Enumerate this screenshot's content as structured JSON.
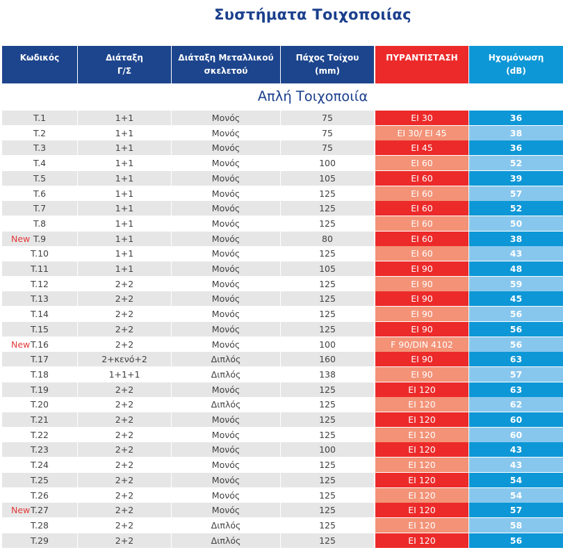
{
  "title": "Συστήματα Τοιχοποιίας",
  "headers": {
    "code": "Κωδικός",
    "arrangement": "Διάταξη Γ/Σ",
    "frame": "Διάταξη Μεταλλικού σκελετού",
    "thickness": "Πάχος Τοίχου (mm)",
    "fire": "ΠΥΡΑΝΤΙΣΤΑΣΗ",
    "acoustic": "Ηχομόνωση (dB)"
  },
  "section": "Απλή Τοιχοποιία",
  "colors": {
    "header_blue": "#1d458d",
    "fire_red": "#ec2a2a",
    "fire_light": "#f39277",
    "acoustic_blue": "#0d97d6",
    "acoustic_light": "#88c7ed",
    "new_label": "#e23a3a"
  },
  "rows": [
    {
      "new": "",
      "code": "T.1",
      "arr": "1+1",
      "frame": "Μονός",
      "thick": "75",
      "fire": "EI 30",
      "fire_dark": true,
      "acou": "36",
      "acou_dark": true
    },
    {
      "new": "",
      "code": "T.2",
      "arr": "1+1",
      "frame": "Μονός",
      "thick": "75",
      "fire": "EI 30/ EI 45",
      "fire_dark": false,
      "acou": "38",
      "acou_dark": false
    },
    {
      "new": "",
      "code": "T.3",
      "arr": "1+1",
      "frame": "Μονός",
      "thick": "75",
      "fire": "EI 45",
      "fire_dark": true,
      "acou": "36",
      "acou_dark": true
    },
    {
      "new": "",
      "code": "T.4",
      "arr": "1+1",
      "frame": "Μονός",
      "thick": "100",
      "fire": "EI 60",
      "fire_dark": false,
      "acou": "52",
      "acou_dark": false
    },
    {
      "new": "",
      "code": "T.5",
      "arr": "1+1",
      "frame": "Μονός",
      "thick": "105",
      "fire": "EI 60",
      "fire_dark": true,
      "acou": "39",
      "acou_dark": true
    },
    {
      "new": "",
      "code": "T.6",
      "arr": "1+1",
      "frame": "Μονός",
      "thick": "125",
      "fire": "EI 60",
      "fire_dark": false,
      "acou": "57",
      "acou_dark": false
    },
    {
      "new": "",
      "code": "T.7",
      "arr": "1+1",
      "frame": "Μονός",
      "thick": "125",
      "fire": "EI 60",
      "fire_dark": true,
      "acou": "52",
      "acou_dark": true
    },
    {
      "new": "",
      "code": "T.8",
      "arr": "1+1",
      "frame": "Μονός",
      "thick": "125",
      "fire": "EI 60",
      "fire_dark": false,
      "acou": "50",
      "acou_dark": false
    },
    {
      "new": "New",
      "code": "T.9",
      "arr": "1+1",
      "frame": "Μονός",
      "thick": "80",
      "fire": "EI 60",
      "fire_dark": true,
      "acou": "38",
      "acou_dark": true
    },
    {
      "new": "",
      "code": "T.10",
      "arr": "1+1",
      "frame": "Μονός",
      "thick": "125",
      "fire": "EI 60",
      "fire_dark": false,
      "acou": "43",
      "acou_dark": false
    },
    {
      "new": "",
      "code": "T.11",
      "arr": "1+1",
      "frame": "Μονός",
      "thick": "105",
      "fire": "EI 90",
      "fire_dark": true,
      "acou": "48",
      "acou_dark": true
    },
    {
      "new": "",
      "code": "T.12",
      "arr": "2+2",
      "frame": "Μονός",
      "thick": "125",
      "fire": "EI 90",
      "fire_dark": false,
      "acou": "59",
      "acou_dark": false
    },
    {
      "new": "",
      "code": "T.13",
      "arr": "2+2",
      "frame": "Μονός",
      "thick": "125",
      "fire": "EI 90",
      "fire_dark": true,
      "acou": "45",
      "acou_dark": true
    },
    {
      "new": "",
      "code": "T.14",
      "arr": "2+2",
      "frame": "Μονός",
      "thick": "125",
      "fire": "EI 90",
      "fire_dark": false,
      "acou": "56",
      "acou_dark": false
    },
    {
      "new": "",
      "code": "T.15",
      "arr": "2+2",
      "frame": "Μονός",
      "thick": "125",
      "fire": "EI 90",
      "fire_dark": true,
      "acou": "56",
      "acou_dark": true
    },
    {
      "new": "New",
      "code": "T.16",
      "arr": "2+2",
      "frame": "Μονός",
      "thick": "100",
      "fire": "F 90/DIN 4102",
      "fire_dark": false,
      "acou": "56",
      "acou_dark": false
    },
    {
      "new": "",
      "code": "T.17",
      "arr": "2+κενό+2",
      "frame": "Διπλός",
      "thick": "160",
      "fire": "EI 90",
      "fire_dark": true,
      "acou": "63",
      "acou_dark": true
    },
    {
      "new": "",
      "code": "T.18",
      "arr": "1+1+1",
      "frame": "Διπλός",
      "thick": "138",
      "fire": "EI 90",
      "fire_dark": false,
      "acou": "57",
      "acou_dark": false
    },
    {
      "new": "",
      "code": "T.19",
      "arr": "2+2",
      "frame": "Μονός",
      "thick": "125",
      "fire": "EI 120",
      "fire_dark": true,
      "acou": "63",
      "acou_dark": true
    },
    {
      "new": "",
      "code": "T.20",
      "arr": "2+2",
      "frame": "Διπλός",
      "thick": "125",
      "fire": "EI 120",
      "fire_dark": false,
      "acou": "62",
      "acou_dark": false
    },
    {
      "new": "",
      "code": "T.21",
      "arr": "2+2",
      "frame": "Μονός",
      "thick": "125",
      "fire": "EI 120",
      "fire_dark": true,
      "acou": "60",
      "acou_dark": true
    },
    {
      "new": "",
      "code": "T.22",
      "arr": "2+2",
      "frame": "Μονός",
      "thick": "125",
      "fire": "EI 120",
      "fire_dark": false,
      "acou": "60",
      "acou_dark": false
    },
    {
      "new": "",
      "code": "T.23",
      "arr": "2+2",
      "frame": "Μονός",
      "thick": "100",
      "fire": "EI 120",
      "fire_dark": true,
      "acou": "43",
      "acou_dark": true
    },
    {
      "new": "",
      "code": "T.24",
      "arr": "2+2",
      "frame": "Μονός",
      "thick": "125",
      "fire": "EI 120",
      "fire_dark": false,
      "acou": "43",
      "acou_dark": false
    },
    {
      "new": "",
      "code": "T.25",
      "arr": "2+2",
      "frame": "Μονός",
      "thick": "125",
      "fire": "EI 120",
      "fire_dark": true,
      "acou": "54",
      "acou_dark": true
    },
    {
      "new": "",
      "code": "T.26",
      "arr": "2+2",
      "frame": "Μονός",
      "thick": "125",
      "fire": "EI 120",
      "fire_dark": false,
      "acou": "54",
      "acou_dark": false
    },
    {
      "new": "New",
      "code": "T.27",
      "arr": "2+2",
      "frame": "Μονός",
      "thick": "125",
      "fire": "EI 120",
      "fire_dark": true,
      "acou": "57",
      "acou_dark": true
    },
    {
      "new": "",
      "code": "T.28",
      "arr": "2+2",
      "frame": "Διπλός",
      "thick": "125",
      "fire": "EI 120",
      "fire_dark": false,
      "acou": "58",
      "acou_dark": false
    },
    {
      "new": "",
      "code": "T.29",
      "arr": "2+2",
      "frame": "Διπλός",
      "thick": "125",
      "fire": "EI 120",
      "fire_dark": true,
      "acou": "56",
      "acou_dark": true
    }
  ]
}
